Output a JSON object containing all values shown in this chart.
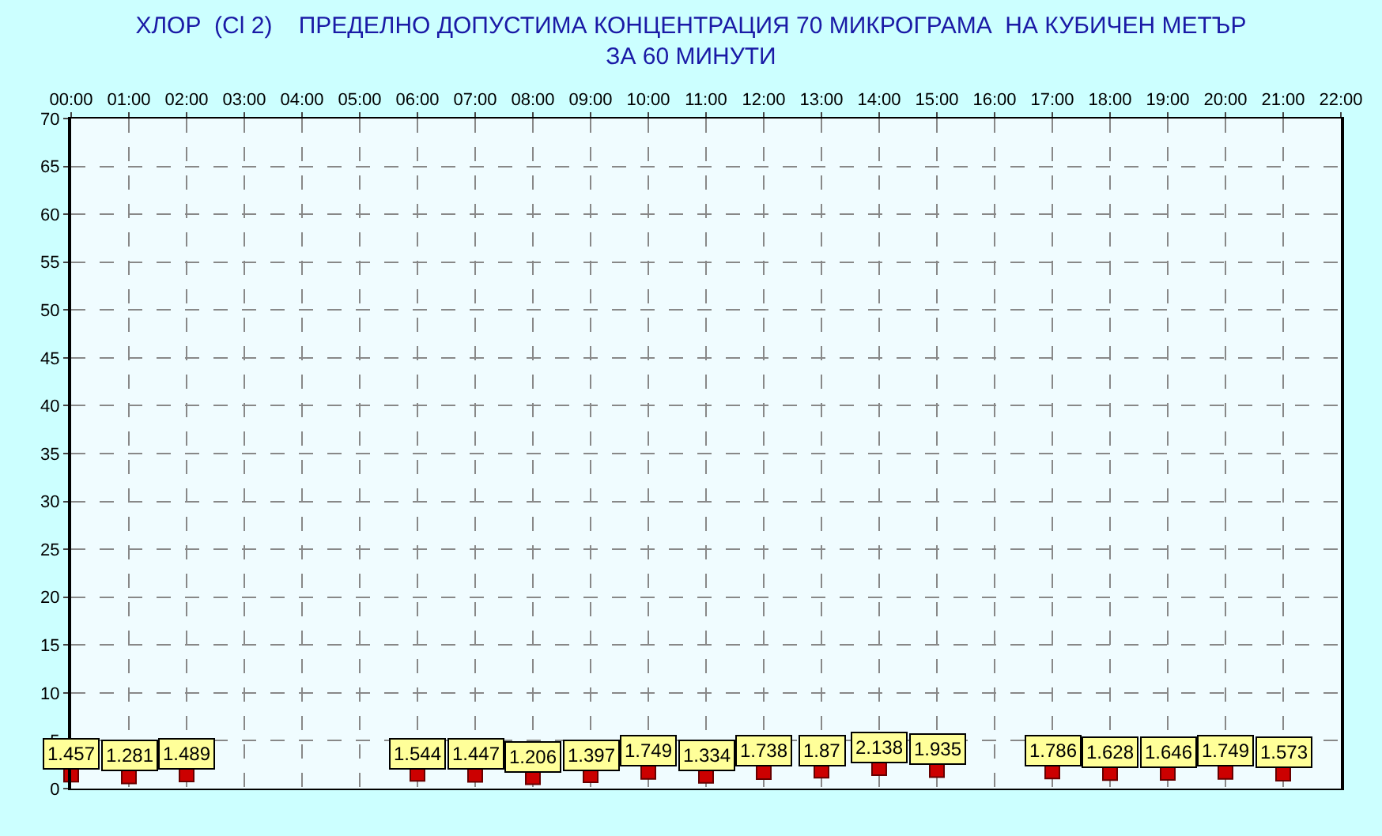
{
  "chart_data": {
    "type": "scatter",
    "title": "ХЛОР  (Cl 2)    ПРЕДЕЛНО ДОПУСТИМА КОНЦЕНТРАЦИЯ 70 МИКРОГРАМА  НА КУБИЧЕН МЕТЪР\nЗА 60 МИНУТИ",
    "x": [
      0,
      1,
      2,
      6,
      7,
      8,
      9,
      10,
      11,
      12,
      13,
      14,
      15,
      17,
      18,
      19,
      20,
      21
    ],
    "series": [
      {
        "color": "#cc0000",
        "values": [
          1.457,
          1.281,
          1.489,
          1.544,
          1.447,
          1.206,
          1.397,
          1.749,
          1.334,
          1.738,
          1.87,
          2.138,
          1.935,
          1.786,
          1.628,
          1.646,
          1.749,
          1.573
        ]
      }
    ],
    "marker": "square",
    "data_labels": true,
    "grid": true,
    "xlim": [
      0,
      22
    ],
    "xticks": [
      {
        "value": 0,
        "label": "00:00"
      },
      {
        "value": 1,
        "label": "01:00"
      },
      {
        "value": 2,
        "label": "02:00"
      },
      {
        "value": 3,
        "label": "03:00"
      },
      {
        "value": 4,
        "label": "04:00"
      },
      {
        "value": 5,
        "label": "05:00"
      },
      {
        "value": 6,
        "label": "06:00"
      },
      {
        "value": 7,
        "label": "07:00"
      },
      {
        "value": 8,
        "label": "08:00"
      },
      {
        "value": 9,
        "label": "09:00"
      },
      {
        "value": 10,
        "label": "10:00"
      },
      {
        "value": 11,
        "label": "11:00"
      },
      {
        "value": 12,
        "label": "12:00"
      },
      {
        "value": 13,
        "label": "13:00"
      },
      {
        "value": 14,
        "label": "14:00"
      },
      {
        "value": 15,
        "label": "15:00"
      },
      {
        "value": 16,
        "label": "16:00"
      },
      {
        "value": 17,
        "label": "17:00"
      },
      {
        "value": 18,
        "label": "18:00"
      },
      {
        "value": 19,
        "label": "19:00"
      },
      {
        "value": 20,
        "label": "20:00"
      },
      {
        "value": 21,
        "label": "21:00"
      },
      {
        "value": 22,
        "label": "22:00"
      }
    ],
    "ylim": [
      0,
      70
    ],
    "yticks": [
      0,
      5,
      10,
      15,
      20,
      25,
      30,
      35,
      40,
      45,
      50,
      55,
      60,
      65,
      70
    ]
  }
}
